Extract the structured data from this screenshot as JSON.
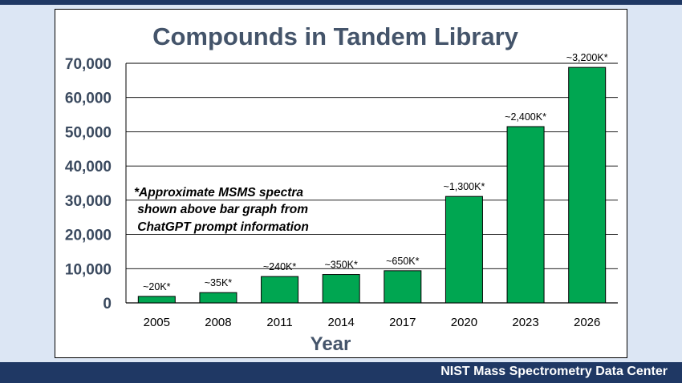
{
  "footer": {
    "text": "NIST Mass Spectrometry Data Center"
  },
  "colors": {
    "bar": "#00a651",
    "banner": "#1f3864",
    "title": "#44546a",
    "background": "#dce6f4"
  },
  "chart_data": {
    "type": "bar",
    "title": "Compounds in Tandem Library",
    "xlabel": "Year",
    "ylabel": "",
    "categories": [
      "2005",
      "2008",
      "2011",
      "2014",
      "2017",
      "2020",
      "2023",
      "2026"
    ],
    "values": [
      1900,
      3000,
      7700,
      8300,
      9400,
      31100,
      51500,
      68800
    ],
    "data_labels": [
      "~20K*",
      "~35K*",
      "~240K*",
      "~350K*",
      "~650K*",
      "~1,300K*",
      "~2,400K*",
      "~3,200K*"
    ],
    "ylim": [
      0,
      70000
    ],
    "yticks": [
      "0",
      "10,000",
      "20,000",
      "30,000",
      "40,000",
      "50,000",
      "60,000",
      "70,000"
    ],
    "grid": true,
    "legend": "none",
    "annotation": [
      "*Approximate MSMS spectra",
      " shown above bar graph from",
      " ChatGPT prompt information"
    ]
  }
}
